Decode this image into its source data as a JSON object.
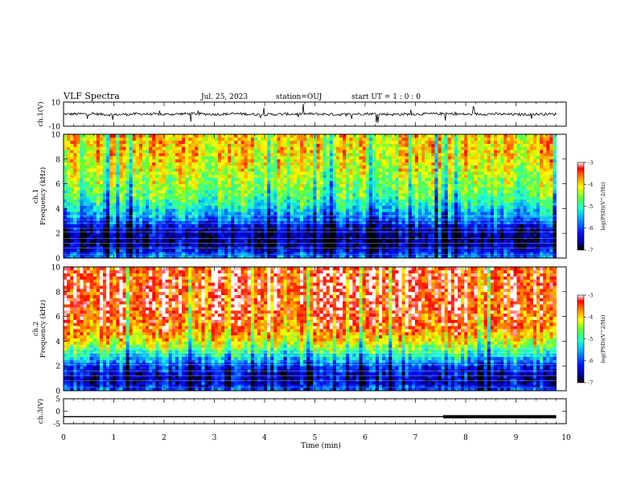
{
  "header": {
    "title": "VLF Spectra",
    "date": "Jul. 25, 2023",
    "station": "station=OUJ",
    "start_ut": "start UT =  1 : 0  : 0"
  },
  "chart_data": [
    {
      "type": "line",
      "panel": "ch1-waveform",
      "ylabel": "ch.1(V)",
      "ylim": [
        -10,
        10
      ],
      "y_ticks": [
        "10",
        "-10"
      ],
      "x": [
        0,
        0.5,
        1,
        1.5,
        2,
        2.5,
        3,
        3.5,
        4,
        4.5,
        5,
        5.5,
        6,
        6.5,
        7,
        7.5,
        8,
        8.5,
        9,
        9.5,
        9.8
      ],
      "values": [
        0,
        0.3,
        -0.5,
        0.2,
        -0.2,
        0.4,
        -0.1,
        0.3,
        -0.4,
        0.1,
        0.2,
        -0.3,
        0.4,
        -0.2,
        0.1,
        0.3,
        -0.1,
        0.2,
        -0.3,
        0.1,
        0
      ],
      "note_text": ""
    },
    {
      "type": "heatmap",
      "panel": "ch1-spectrogram",
      "ylabel_line1": "ch.1",
      "ylabel_line2": "Frequency (kHz)",
      "ylim": [
        0,
        10
      ],
      "y_ticks": [
        "0",
        "2",
        "4",
        "6",
        "8",
        "10"
      ],
      "colorbar": {
        "label": "log(PSD)(V^2/Hz)",
        "ticks": [
          "-3",
          "-4",
          "-5",
          "-6",
          "-7"
        ],
        "range": [
          -7,
          -3
        ]
      },
      "band_profile_log_psd": {
        "freq_khz": [
          0,
          0.5,
          1,
          1.5,
          2,
          2.5,
          3,
          3.5,
          4,
          4.5,
          5,
          6,
          7,
          8,
          9,
          10
        ],
        "values": [
          -5.6,
          -6.2,
          -6.6,
          -6.7,
          -6.6,
          -6.4,
          -5.9,
          -5.6,
          -5.3,
          -5.0,
          -4.8,
          -4.5,
          -4.3,
          -4.1,
          -4.0,
          -4.0
        ]
      }
    },
    {
      "type": "heatmap",
      "panel": "ch2-spectrogram",
      "ylabel_line1": "ch.2",
      "ylabel_line2": "Frequency (kHz)",
      "ylim": [
        0,
        10
      ],
      "y_ticks": [
        "0",
        "2",
        "4",
        "6",
        "8",
        "10"
      ],
      "colorbar": {
        "label": "log(PSD)(V^2/Hz)",
        "ticks": [
          "-3",
          "-4",
          "-5",
          "-6",
          "-7"
        ],
        "range": [
          -7,
          -3
        ]
      },
      "band_profile_log_psd": {
        "freq_khz": [
          0,
          0.5,
          1,
          1.5,
          2,
          2.5,
          3,
          3.5,
          4,
          4.5,
          5,
          6,
          7,
          8,
          9,
          10
        ],
        "values": [
          -5.8,
          -6.3,
          -6.5,
          -6.3,
          -6.0,
          -5.5,
          -5.0,
          -4.5,
          -4.1,
          -3.8,
          -3.6,
          -3.4,
          -3.3,
          -3.3,
          -3.3,
          -3.3
        ]
      }
    },
    {
      "type": "line",
      "panel": "ch3-waveform",
      "ylabel": "ch.3(V)",
      "ylim": [
        -5,
        5
      ],
      "y_ticks": [
        "5",
        "0",
        "-5"
      ],
      "x": [
        0,
        7.55,
        7.55,
        9.8
      ],
      "values": [
        -2.2,
        -2.2,
        -2.2,
        -2.2
      ],
      "thick_from_min": 7.55
    }
  ],
  "x_axis": {
    "label": "Time (min)",
    "range": [
      0,
      10
    ],
    "ticks": [
      "0",
      "1",
      "2",
      "3",
      "4",
      "5",
      "6",
      "7",
      "8",
      "9",
      "10"
    ]
  }
}
